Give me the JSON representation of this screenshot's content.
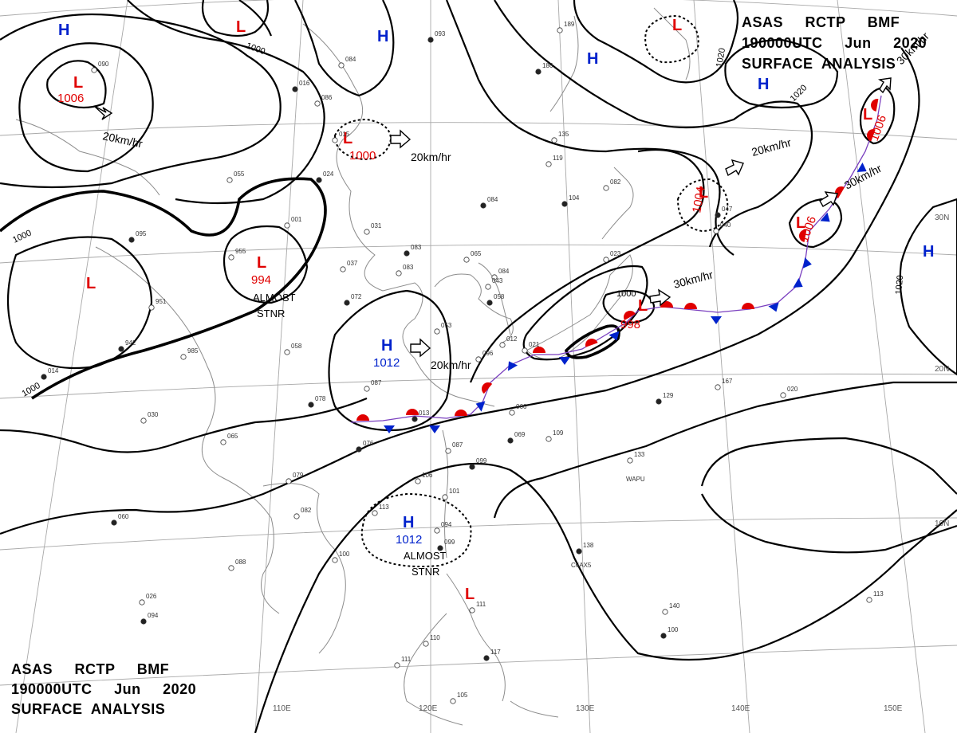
{
  "header": {
    "top_right": {
      "line1": "ASAS     RCTP     BMF",
      "line2": "190000UTC     Jun     2020",
      "line3": "SURFACE  ANALYSIS"
    },
    "bottom_left": {
      "line1": "ASAS     RCTP     BMF",
      "line2": "190000UTC     Jun     2020",
      "line3": "SURFACE  ANALYSIS"
    }
  },
  "axis": {
    "longitudes": [
      "110E",
      "120E",
      "130E",
      "140E",
      "150E"
    ],
    "latitudes": [
      "30N",
      "20N",
      "10N"
    ]
  },
  "colors": {
    "low": "#e00000",
    "high": "#0022cc",
    "isobar": "#000000",
    "grid": "#a8a8a8"
  },
  "isobar_labels": [
    "1000",
    "1000",
    "1000",
    "1000",
    "1020",
    "1020",
    "1020"
  ],
  "pressure_centers": [
    {
      "type": "H",
      "value": ""
    },
    {
      "type": "L",
      "value": ""
    },
    {
      "type": "H",
      "value": ""
    },
    {
      "type": "H",
      "value": ""
    },
    {
      "type": "L",
      "value": ""
    },
    {
      "type": "H",
      "value": ""
    },
    {
      "type": "L",
      "value": "1006"
    },
    {
      "type": "L",
      "value": "1000"
    },
    {
      "type": "L",
      "value": "994"
    },
    {
      "type": "L",
      "value": ""
    },
    {
      "type": "H",
      "value": "1012"
    },
    {
      "type": "L",
      "value": "1004"
    },
    {
      "type": "L",
      "value": "1006"
    },
    {
      "type": "L",
      "value": "1006"
    },
    {
      "type": "L",
      "value": "998"
    },
    {
      "type": "H",
      "value": ""
    },
    {
      "type": "H",
      "value": "1012"
    },
    {
      "type": "L",
      "value": ""
    }
  ],
  "movements": [
    "20km/hr",
    "20km/hr",
    "20km/hr",
    "20km/hr",
    "30km/hr",
    "30km/hr",
    "30km/hr"
  ],
  "stationary_notes": [
    "ALMOST",
    "STNR",
    "ALMOST",
    "STNR"
  ],
  "station_obs": [
    "093",
    "090",
    "084",
    "016",
    "086",
    "055",
    "024",
    "001",
    "031",
    "083",
    "065",
    "037",
    "095",
    "955",
    "951",
    "942",
    "985",
    "058",
    "072",
    "083",
    "087",
    "078",
    "065",
    "030",
    "076",
    "079",
    "082",
    "060",
    "088",
    "100",
    "094",
    "113",
    "094",
    "084",
    "135",
    "119",
    "104",
    "082",
    "189",
    "186",
    "023",
    "084",
    "058",
    "021",
    "066",
    "069",
    "109",
    "087",
    "099",
    "106",
    "101",
    "099",
    "111",
    "110",
    "117",
    "111",
    "105",
    "129",
    "167",
    "133",
    "138",
    "140",
    "113",
    "100",
    "096",
    "053",
    "047",
    "040",
    "043",
    "013",
    "015",
    "012",
    "014",
    "026",
    "020"
  ],
  "station_ids": [
    "WAPU",
    "C6AX5"
  ]
}
